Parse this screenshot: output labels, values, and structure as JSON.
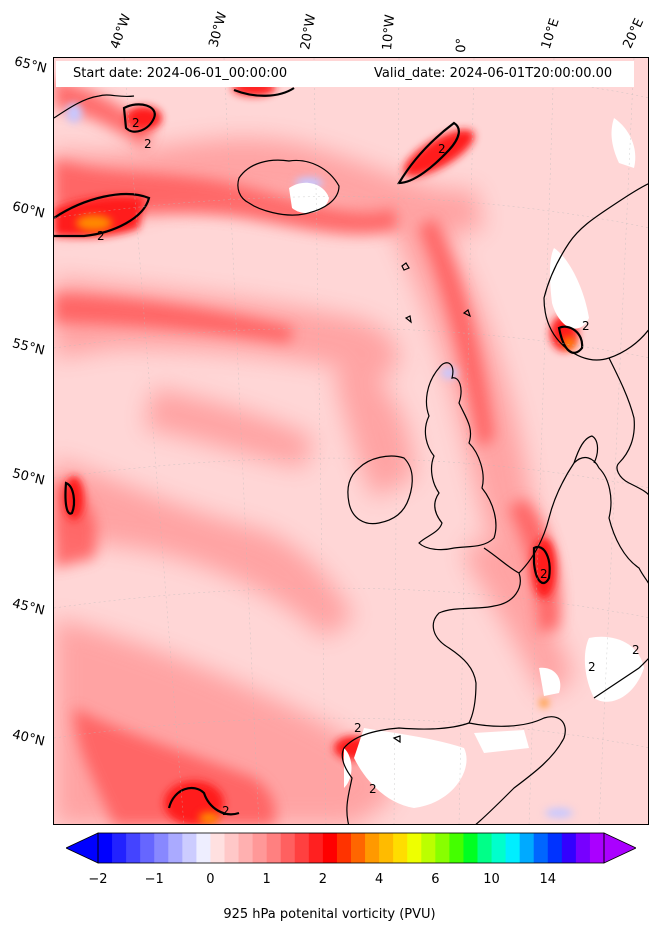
{
  "header": {
    "start_date": "Start date: 2024-06-01_00:00:00",
    "valid_date": "Valid_date: 2024-06-01T20:00:00.00"
  },
  "map": {
    "field": "potential vorticity",
    "level": "925 hPa",
    "region": "North Atlantic and Western Europe",
    "contour_label": "2",
    "lon_labels": [
      "40°W",
      "30°W",
      "20°W",
      "10°W",
      "0°",
      "10°E",
      "20°E"
    ],
    "lat_labels": [
      "65°N",
      "60°N",
      "55°N",
      "50°N",
      "45°N",
      "40°N"
    ],
    "colors": {
      "background_field": "#ffd3d3",
      "moderate": "#ff9a9a",
      "strong": "#ff5a5a",
      "very_strong": "#ff1a1a",
      "extreme": "#ff8a00",
      "negative": "#c8c8ff",
      "coastline": "#000000"
    }
  },
  "colorbar": {
    "label": "925 hPa potenital vorticity (PVU)",
    "tick_labels": [
      "−2",
      "−1",
      "0",
      "1",
      "2",
      "4",
      "6",
      "10",
      "14"
    ],
    "colors": [
      "#0000ff",
      "#2222ff",
      "#4444ff",
      "#6666ff",
      "#8888ff",
      "#aaaaff",
      "#ccccff",
      "#eeeeff",
      "#ffe0e0",
      "#ffc8c8",
      "#ffb0b0",
      "#ff9898",
      "#ff8080",
      "#ff6060",
      "#ff4040",
      "#ff2020",
      "#ff0000",
      "#ff3300",
      "#ff6600",
      "#ff9900",
      "#ffbb00",
      "#ffdd00",
      "#eeff00",
      "#bbff00",
      "#88ff00",
      "#44ff00",
      "#00ff22",
      "#00ff88",
      "#00ffcc",
      "#00eeff",
      "#00aaff",
      "#0066ff",
      "#0033ff",
      "#3300ff",
      "#7700ff",
      "#aa00ff"
    ],
    "under_color": "#0000ff",
    "over_color": "#aa00ff"
  }
}
